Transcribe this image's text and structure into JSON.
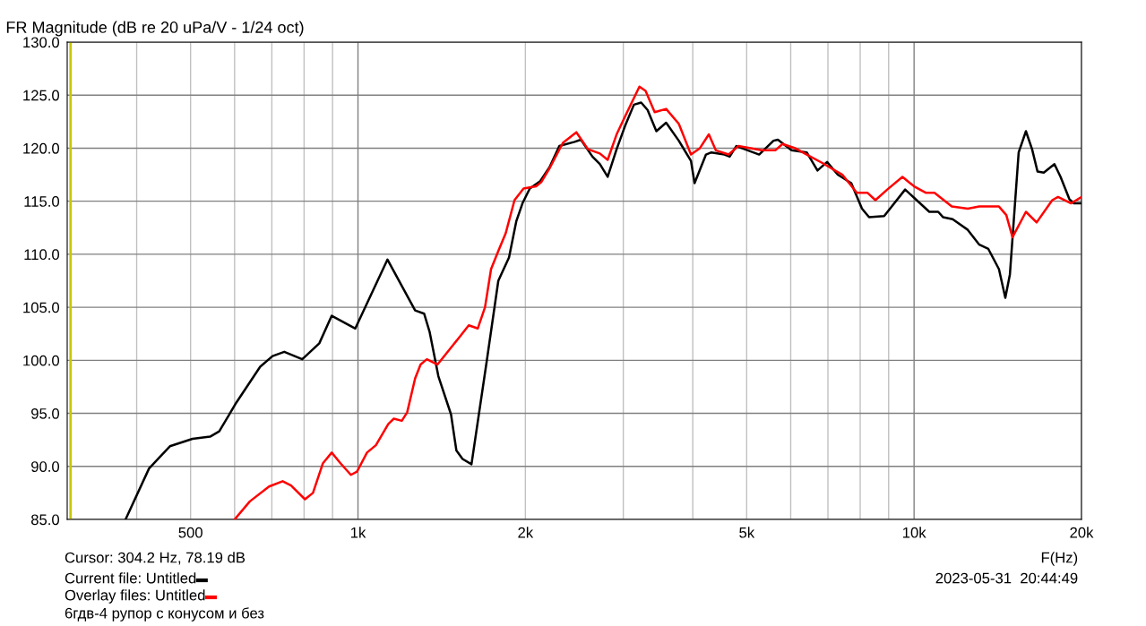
{
  "chart_data": {
    "type": "line",
    "title": "FR Magnitude (dB re 20 uPa/V - 1/24 oct)",
    "xlabel": "F(Hz)",
    "log": "x",
    "grid": true,
    "legend": "bottom left",
    "line_style": "solid",
    "marker": "none",
    "xlim": [
      300,
      20000
    ],
    "ylim": [
      85,
      130
    ],
    "xticks": [
      {
        "value": 400,
        "label": null
      },
      500,
      {
        "value": 600,
        "label": null
      },
      {
        "value": 700,
        "label": null
      },
      {
        "value": 800,
        "label": null
      },
      {
        "value": 900,
        "label": null
      },
      {
        "value": 1000,
        "label": "1k"
      },
      {
        "value": 2000,
        "label": "2k"
      },
      {
        "value": 3000,
        "label": null
      },
      {
        "value": 4000,
        "label": null
      },
      {
        "value": 5000,
        "label": "5k"
      },
      {
        "value": 6000,
        "label": null
      },
      {
        "value": 7000,
        "label": null
      },
      {
        "value": 8000,
        "label": null
      },
      {
        "value": 9000,
        "label": null
      },
      {
        "value": 10000,
        "label": "10k"
      },
      {
        "value": 20000,
        "label": "20k"
      }
    ],
    "yticks": [
      {
        "value": 85,
        "label": "85.0"
      },
      {
        "value": 90,
        "label": "90.0"
      },
      {
        "value": 95,
        "label": "95.0"
      },
      {
        "value": 100,
        "label": "100.0"
      },
      {
        "value": 105,
        "label": "105.0"
      },
      {
        "value": 110,
        "label": "110.0"
      },
      {
        "value": 115,
        "label": "115.0"
      },
      {
        "value": 120,
        "label": "120.0"
      },
      {
        "value": 125,
        "label": "125.0"
      },
      {
        "value": 130,
        "label": "130.0"
      }
    ],
    "ref_lines": [
      {
        "axis": "x",
        "value": 304.2,
        "color": "#c8c800"
      }
    ],
    "series": [
      {
        "name": "Current file: Untitled",
        "color": "#000000",
        "x": [
          382,
          421,
          459,
          504,
          542,
          563,
          604,
          667,
          702,
          737,
          794,
          852,
          897,
          989,
          1130,
          1267,
          1315,
          1345,
          1395,
          1470,
          1503,
          1542,
          1600,
          1704,
          1788,
          1869,
          1926,
          1976,
          2037,
          2127,
          2210,
          2302,
          2452,
          2517,
          2640,
          2722,
          2812,
          2918,
          3022,
          3135,
          3230,
          3317,
          3440,
          3582,
          3775,
          3970,
          4030,
          4225,
          4320,
          4560,
          4660,
          4790,
          5265,
          5587,
          5690,
          6020,
          6412,
          6703,
          6975,
          7290,
          7710,
          8060,
          8300,
          8835,
          9637,
          10650,
          11050,
          11270,
          11730,
          12490,
          13100,
          13600,
          14210,
          14590,
          14870,
          15420,
          15890,
          16300,
          16670,
          17110,
          17880,
          18340,
          19020,
          19380,
          20000
        ],
        "values": [
          85.0,
          89.8,
          91.9,
          92.6,
          92.8,
          93.3,
          96.0,
          99.4,
          100.4,
          100.8,
          100.1,
          101.6,
          104.2,
          103.0,
          109.5,
          104.7,
          104.4,
          102.7,
          98.5,
          94.9,
          91.5,
          90.7,
          90.2,
          99.9,
          107.5,
          109.7,
          113.1,
          114.8,
          116.2,
          116.9,
          118.2,
          120.2,
          120.6,
          120.8,
          119.2,
          118.5,
          117.3,
          119.9,
          122.1,
          124.1,
          124.3,
          123.6,
          121.6,
          122.4,
          120.7,
          118.8,
          116.7,
          119.4,
          119.6,
          119.4,
          119.2,
          120.2,
          119.4,
          120.7,
          120.8,
          119.8,
          119.6,
          117.9,
          118.7,
          117.5,
          116.7,
          114.3,
          113.5,
          113.6,
          116.1,
          114.0,
          114.0,
          113.5,
          113.3,
          112.3,
          110.9,
          110.5,
          108.6,
          105.9,
          108.1,
          119.6,
          121.6,
          119.9,
          117.8,
          117.7,
          118.5,
          117.3,
          115.2,
          114.8,
          114.8
        ]
      },
      {
        "name": "Overlay files: Untitled",
        "color": "#ff0000",
        "x": [
          600,
          639,
          692,
          732,
          758,
          803,
          830,
          865,
          897,
          930,
          971,
          996,
          1038,
          1077,
          1134,
          1160,
          1199,
          1226,
          1267,
          1296,
          1330,
          1390,
          1486,
          1582,
          1642,
          1692,
          1735,
          1788,
          1844,
          1912,
          1985,
          2091,
          2136,
          2216,
          2336,
          2470,
          2592,
          2722,
          2812,
          2918,
          3022,
          3207,
          3290,
          3416,
          3582,
          3775,
          3970,
          4120,
          4275,
          4400,
          4640,
          4830,
          5320,
          5630,
          5800,
          6110,
          6412,
          6840,
          7430,
          7890,
          8240,
          8520,
          8950,
          9530,
          10000,
          10490,
          10880,
          11690,
          12490,
          13100,
          14210,
          14650,
          15030,
          15890,
          16610,
          17720,
          18150,
          19160,
          20000
        ],
        "values": [
          85.0,
          86.7,
          88.1,
          88.6,
          88.2,
          86.9,
          87.5,
          90.3,
          91.3,
          90.3,
          89.2,
          89.5,
          91.3,
          92.0,
          94.0,
          94.5,
          94.3,
          95.1,
          98.3,
          99.6,
          100.1,
          99.6,
          101.5,
          103.3,
          103.0,
          105.0,
          108.6,
          110.3,
          112.0,
          115.1,
          116.2,
          116.4,
          116.8,
          118.2,
          120.5,
          121.5,
          119.9,
          119.5,
          118.9,
          121.3,
          123.0,
          125.8,
          125.4,
          123.4,
          123.7,
          122.3,
          119.4,
          120.0,
          121.3,
          119.8,
          119.4,
          120.2,
          119.8,
          119.8,
          120.4,
          120.0,
          119.4,
          118.6,
          117.5,
          115.8,
          115.8,
          115.1,
          116.1,
          117.3,
          116.4,
          115.8,
          115.8,
          114.5,
          114.3,
          114.5,
          114.5,
          113.7,
          111.6,
          114.0,
          113.0,
          115.1,
          115.4,
          114.8,
          115.4
        ]
      }
    ],
    "annotations": [
      "Cursor: 304.2 Hz, 78.19 dB",
      "6гдв-4 рупор с конусом и без",
      "2023-05-31  20:44:49"
    ]
  }
}
